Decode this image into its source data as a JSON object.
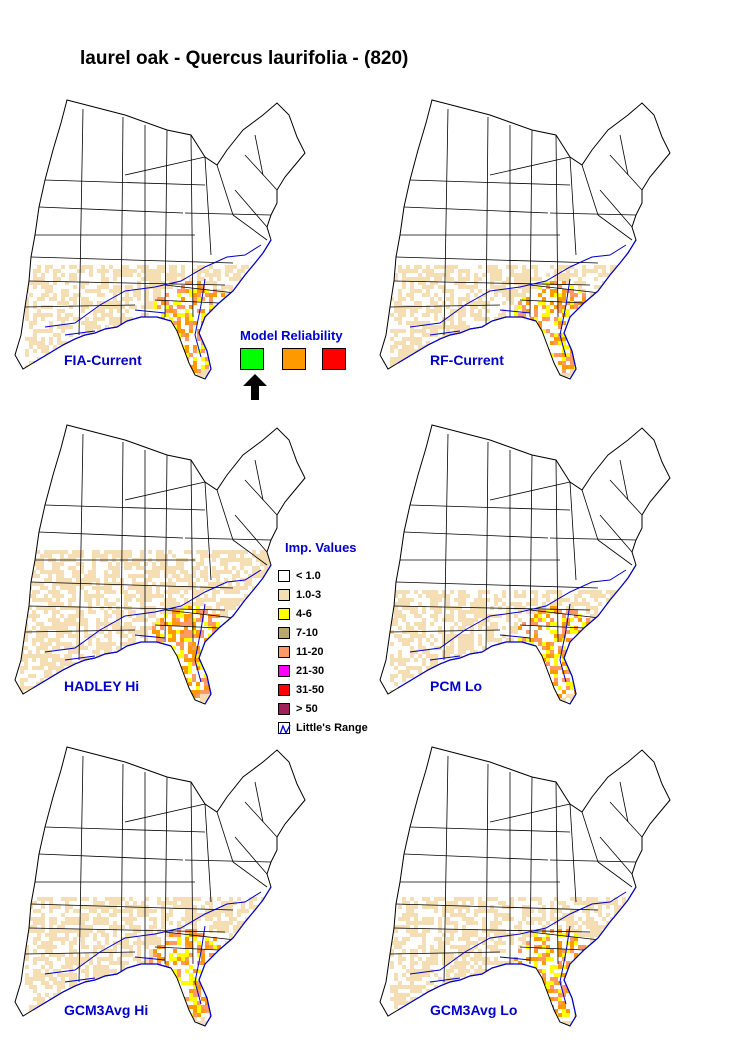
{
  "title": "laurel oak - Quercus laurifolia - (820)",
  "model_reliability": {
    "label": "Model Reliability",
    "levels": [
      {
        "name": "high",
        "color": "#00ff00"
      },
      {
        "name": "medium",
        "color": "#ff9900"
      },
      {
        "name": "low",
        "color": "#ff0000"
      }
    ],
    "selected": "high"
  },
  "maps": [
    {
      "label": "FIA-Current",
      "extent": "south"
    },
    {
      "label": "RF-Current",
      "extent": "south"
    },
    {
      "label": "HADLEY Hi",
      "extent": "wide"
    },
    {
      "label": "PCM Lo",
      "extent": "south"
    },
    {
      "label": "GCM3Avg Hi",
      "extent": "mid"
    },
    {
      "label": "GCM3Avg Lo",
      "extent": "mid"
    }
  ],
  "legend": {
    "title": "Imp. Values",
    "items": [
      {
        "label": "< 1.0",
        "color": "#ffffff"
      },
      {
        "label": "1.0-3",
        "color": "#f5deb3"
      },
      {
        "label": "4-6",
        "color": "#ffff00"
      },
      {
        "label": "7-10",
        "color": "#b8a870"
      },
      {
        "label": "11-20",
        "color": "#ff9966"
      },
      {
        "label": "21-30",
        "color": "#ff00ff"
      },
      {
        "label": "31-50",
        "color": "#ff0000"
      },
      {
        "label": "> 50",
        "color": "#a0205a"
      },
      {
        "label": "Little's Range",
        "color": "#0000cc"
      }
    ]
  },
  "colors": {
    "label_blue": "#0000cc",
    "state_line": "#000000",
    "range_line": "#0000cc"
  }
}
